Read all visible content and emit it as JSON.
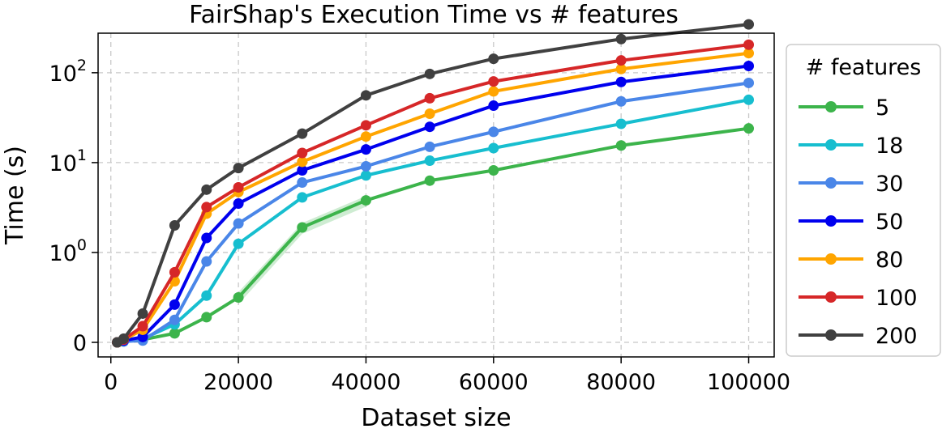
{
  "chart_data": {
    "type": "line",
    "title": "FairShap's Execution Time vs # features",
    "xlabel": "Dataset size",
    "ylabel": "Time (s)",
    "xlim": [
      -2000,
      104000
    ],
    "ylim": [
      0,
      400
    ],
    "yscale": "symlog",
    "x_ticks": [
      0,
      20000,
      40000,
      60000,
      80000,
      100000
    ],
    "x_tick_labels": [
      "0",
      "20000",
      "40000",
      "60000",
      "80000",
      "100000"
    ],
    "y_ticks": [
      {
        "value": 0,
        "base": "0",
        "exp": ""
      },
      {
        "value": 1,
        "base": "10",
        "exp": "0"
      },
      {
        "value": 10,
        "base": "10",
        "exp": "1"
      },
      {
        "value": 100,
        "base": "10",
        "exp": "2"
      }
    ],
    "grid": true,
    "legend": {
      "title": "# features",
      "position": "outside-right"
    },
    "x": [
      1000,
      2000,
      5000,
      10000,
      15000,
      20000,
      30000,
      40000,
      50000,
      60000,
      80000,
      100000
    ],
    "series": [
      {
        "name": "5",
        "color": "#3cb44b",
        "values": [
          0.0,
          0.01,
          0.03,
          0.1,
          0.28,
          0.5,
          1.9,
          3.8,
          6.3,
          8.2,
          15.5,
          24
        ]
      },
      {
        "name": "18",
        "color": "#17becf",
        "values": [
          0.0,
          0.01,
          0.04,
          0.2,
          0.52,
          1.25,
          4.1,
          7.2,
          10.5,
          14.5,
          27,
          50
        ]
      },
      {
        "name": "30",
        "color": "#4a86e8",
        "values": [
          0.0,
          0.01,
          0.02,
          0.25,
          0.9,
          2.1,
          6.0,
          9.1,
          15,
          22,
          48,
          77
        ]
      },
      {
        "name": "50",
        "color": "#0000ee",
        "values": [
          0.0,
          0.02,
          0.06,
          0.42,
          1.45,
          3.5,
          8.2,
          14,
          25,
          43,
          79,
          119
        ]
      },
      {
        "name": "80",
        "color": "#ffa500",
        "values": [
          0.0,
          0.03,
          0.14,
          0.68,
          2.7,
          4.7,
          10.2,
          19.5,
          35,
          62,
          110,
          165
        ]
      },
      {
        "name": "100",
        "color": "#d62728",
        "values": [
          0.0,
          0.03,
          0.18,
          0.78,
          3.2,
          5.3,
          12.8,
          26,
          52,
          80,
          137,
          205
        ]
      },
      {
        "name": "200",
        "color": "#404040",
        "values": [
          0.0,
          0.04,
          0.32,
          2.0,
          5.0,
          8.7,
          21,
          56,
          97,
          143,
          237,
          345
        ]
      }
    ]
  }
}
